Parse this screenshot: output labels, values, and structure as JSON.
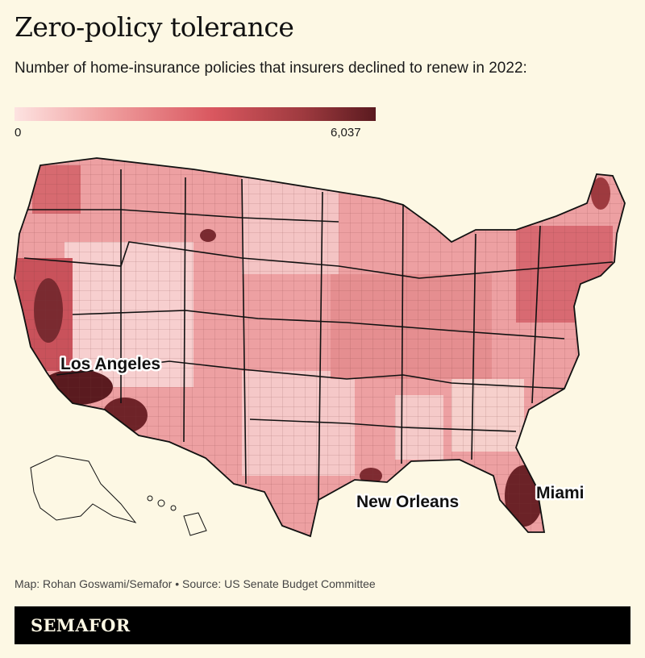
{
  "title": "Zero-policy tolerance",
  "subtitle": "Number of home-insurance policies that insurers declined to renew in 2022:",
  "legend": {
    "min": "0",
    "max": "6,037",
    "colors": [
      "#fde3e1",
      "#f0a0a0",
      "#d9575f",
      "#9e3a3f",
      "#5a1a1f"
    ]
  },
  "labels": {
    "la": "Los Angeles",
    "no": "New Orleans",
    "miami": "Miami"
  },
  "credit": "Map: Rohan Goswami/Semafor • Source: US Senate Budget Committee",
  "brand": "SEMAFOR"
}
